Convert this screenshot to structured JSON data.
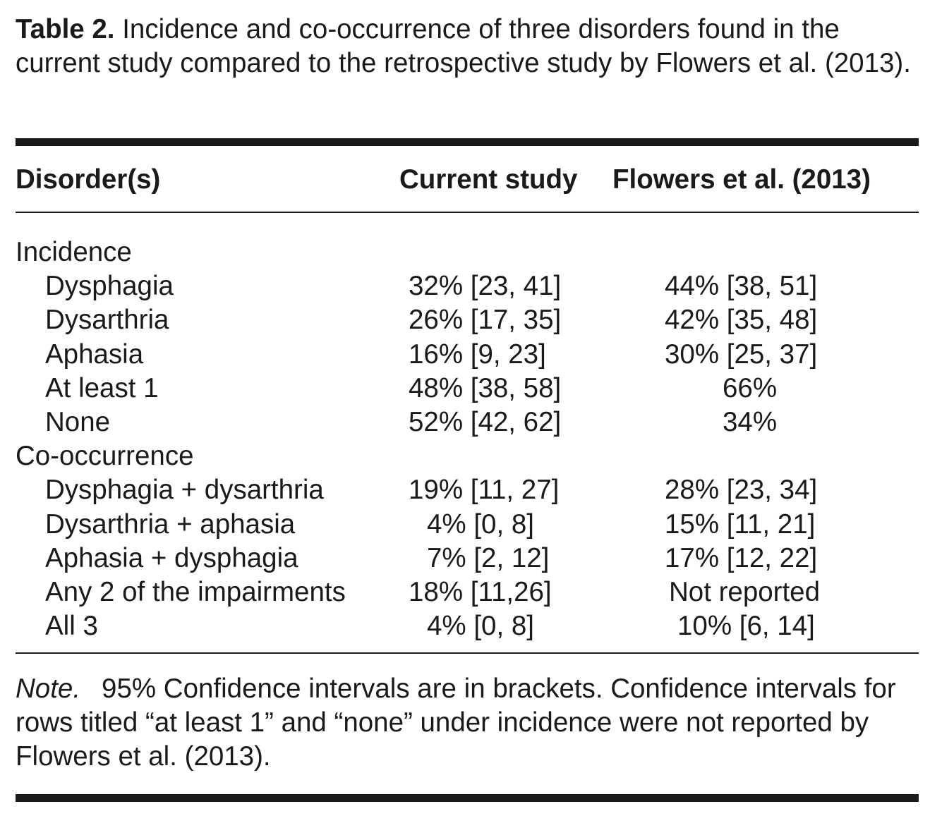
{
  "caption": {
    "label": "Table 2.",
    "text": "Incidence and co-occurrence of three disorders found in the current study compared to the retrospective study by Flowers et al. (2013)."
  },
  "columns": {
    "disorder": "Disorder(s)",
    "current": "Current study",
    "flowers": "Flowers et al. (2013)"
  },
  "rows": [
    {
      "label": "Incidence",
      "current": "",
      "flowers": ""
    },
    {
      "label": "Dysphagia",
      "current": "32% [23, 41]",
      "flowers": "44% [38, 51]"
    },
    {
      "label": "Dysarthria",
      "current": "26% [17, 35]",
      "flowers": "42% [35, 48]"
    },
    {
      "label": "Aphasia",
      "current": "16% [9, 23]",
      "flowers": "30% [25, 37]"
    },
    {
      "label": "At least 1",
      "current": "48% [38, 58]",
      "flowers": "66%"
    },
    {
      "label": "None",
      "current": "52% [42, 62]",
      "flowers": "34%"
    },
    {
      "label": "Co-occurrence",
      "current": "",
      "flowers": ""
    },
    {
      "label": "Dysphagia + dysarthria",
      "current": "19% [11, 27]",
      "flowers": "28% [23, 34]"
    },
    {
      "label": "Dysarthria + aphasia",
      "current": "4% [0, 8]",
      "flowers": "15% [11, 21]"
    },
    {
      "label": "Aphasia + dysphagia",
      "current": "7% [2, 12]",
      "flowers": "17% [12, 22]"
    },
    {
      "label": "Any 2 of the impairments",
      "current": "18% [11,26]",
      "flowers": "Not reported"
    },
    {
      "label": "All 3",
      "current": "4% [0, 8]",
      "flowers": "10% [6, 14]"
    }
  ],
  "note": {
    "label": "Note.",
    "text": "95% Confidence intervals are in brackets. Confidence intervals for rows titled “at least 1” and “none” under incidence were not reported by Flowers et al. (2013)."
  }
}
